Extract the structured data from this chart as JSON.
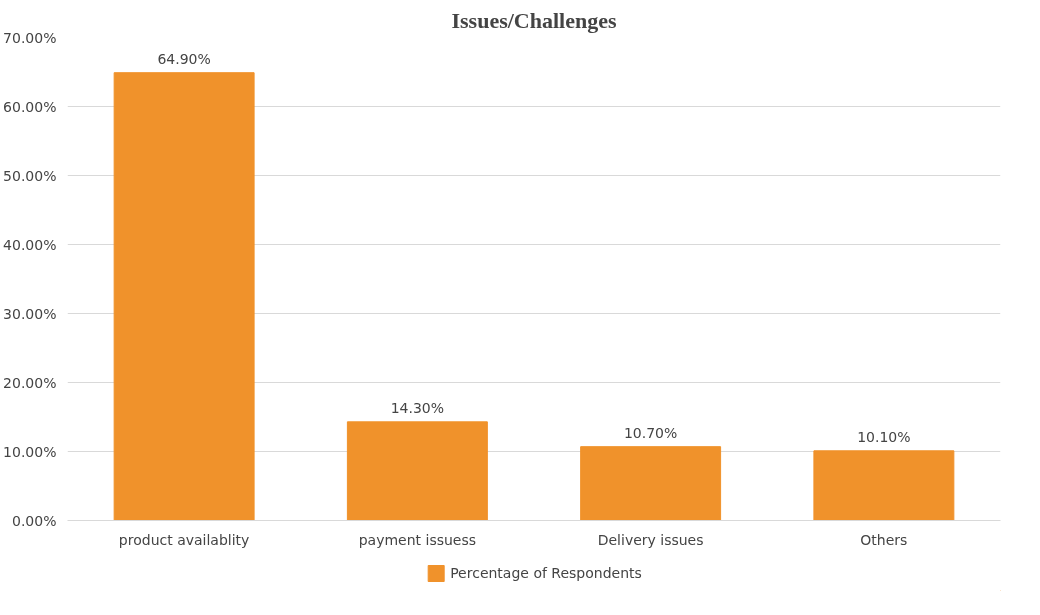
{
  "chart_data": {
    "type": "bar",
    "title": "Issues/Challenges",
    "categories": [
      "product availablity",
      "payment issuess",
      "Delivery issues",
      "Others"
    ],
    "series": [
      {
        "name": "Percentage of Respondents",
        "color": "#f0922b",
        "values": [
          64.9,
          14.3,
          10.7,
          10.1
        ],
        "value_labels": [
          "64.90%",
          "14.30%",
          "10.70%",
          "10.10%"
        ]
      }
    ],
    "ylim": [
      0,
      70
    ],
    "yticks": [
      {
        "value": 0,
        "label": "0.00%"
      },
      {
        "value": 10,
        "label": "10.00%"
      },
      {
        "value": 20,
        "label": "20.00%"
      },
      {
        "value": 30,
        "label": "30.00%"
      },
      {
        "value": 40,
        "label": "40.00%"
      },
      {
        "value": 50,
        "label": "50.00%"
      },
      {
        "value": 60,
        "label": "60.00%"
      },
      {
        "value": 70,
        "label": "70.00%"
      }
    ],
    "grid": "y",
    "legend": "bottom"
  }
}
